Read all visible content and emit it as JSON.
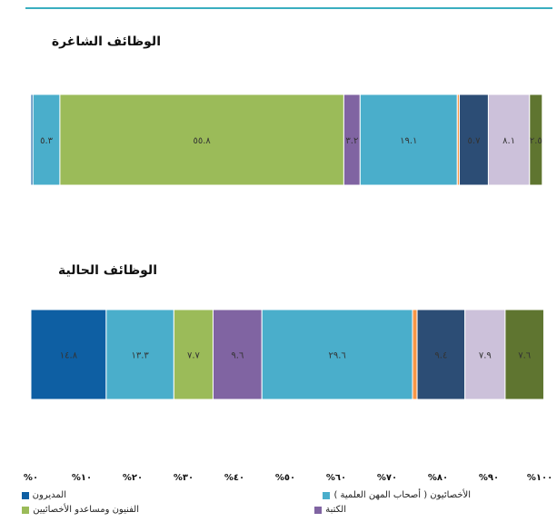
{
  "chart_data": {
    "type": "bar",
    "orientation": "horizontal-stacked-100",
    "xlim": [
      0,
      100
    ],
    "x_ticks": [
      "%٠",
      "%١٠",
      "%٢٠",
      "%٣٠",
      "%٤٠",
      "%٥٠",
      "%٦٠",
      "%٧٠",
      "%٨٠",
      "%٩٠",
      "%١٠٠"
    ],
    "categories": [
      "الوظائف الشاغرة",
      "الوظائف الحالية"
    ],
    "series": [
      {
        "name": "المديرون",
        "color": "#0e5fa3",
        "values": [
          0.4,
          14.8
        ],
        "labels": [
          "",
          "١٤.٨"
        ]
      },
      {
        "name": "الأخصائيون ( أصحاب المهن العلمية )",
        "color": "#4aaecb",
        "values": [
          5.3,
          13.3
        ],
        "labels": [
          "٥.٣",
          "١٣.٣"
        ]
      },
      {
        "name": "الفنيون ومساعدو الأخصائيين",
        "color": "#9bbb59",
        "values": [
          55.8,
          7.7
        ],
        "labels": [
          "٥٥.٨",
          "٧.٧"
        ]
      },
      {
        "name": "الكتبة",
        "color": "#8064a2",
        "values": [
          3.2,
          9.6
        ],
        "labels": [
          "٣.٢",
          "٩.٦"
        ]
      },
      {
        "name": "",
        "color": "#4aaecb",
        "values": [
          19.1,
          29.6
        ],
        "labels": [
          "١٩.١",
          "٢٩.٦"
        ]
      },
      {
        "name": "",
        "color": "#f79646",
        "values": [
          0.4,
          0.9
        ],
        "labels": [
          "",
          ""
        ]
      },
      {
        "name": "",
        "color": "#2c4d75",
        "values": [
          5.7,
          9.4
        ],
        "labels": [
          "٥.٧",
          "٩.٤"
        ]
      },
      {
        "name": "",
        "color": "#ccc1da",
        "values": [
          8.1,
          7.9
        ],
        "labels": [
          "٨.١",
          "٧.٩"
        ]
      },
      {
        "name": "",
        "color": "#5f7530",
        "values": [
          2.5,
          7.6
        ],
        "labels": [
          "٢.٥",
          "٧.٦"
        ]
      }
    ],
    "legend": {
      "placement": "bottom"
    }
  },
  "legend_items": [
    {
      "label": "المديرون",
      "color": "#0e5fa3"
    },
    {
      "label": "الأخصائيون ( أصحاب المهن العلمية )",
      "color": "#4aaecb"
    },
    {
      "label": "الفنيون ومساعدو الأخصائيين",
      "color": "#9bbb59"
    },
    {
      "label": "الكتبة",
      "color": "#8064a2"
    }
  ]
}
